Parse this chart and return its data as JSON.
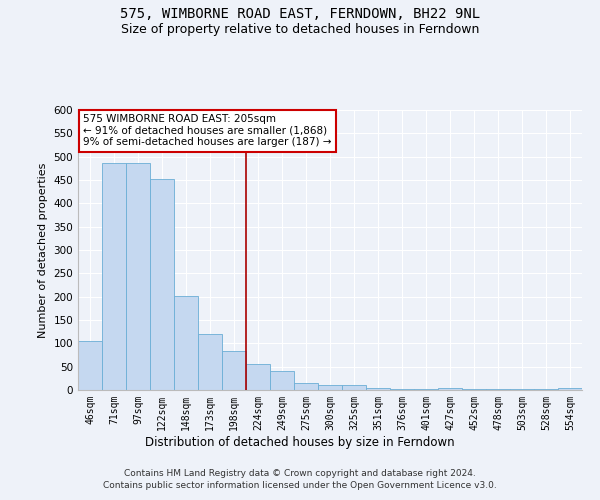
{
  "title1": "575, WIMBORNE ROAD EAST, FERNDOWN, BH22 9NL",
  "title2": "Size of property relative to detached houses in Ferndown",
  "xlabel": "Distribution of detached houses by size in Ferndown",
  "ylabel": "Number of detached properties",
  "categories": [
    "46sqm",
    "71sqm",
    "97sqm",
    "122sqm",
    "148sqm",
    "173sqm",
    "198sqm",
    "224sqm",
    "249sqm",
    "275sqm",
    "300sqm",
    "325sqm",
    "351sqm",
    "376sqm",
    "401sqm",
    "427sqm",
    "452sqm",
    "478sqm",
    "503sqm",
    "528sqm",
    "554sqm"
  ],
  "values": [
    105,
    487,
    487,
    452,
    201,
    120,
    83,
    56,
    40,
    14,
    10,
    10,
    5,
    2,
    2,
    5,
    2,
    2,
    2,
    2,
    5
  ],
  "bar_color": "#c5d8f0",
  "bar_edge_color": "#6baed6",
  "property_line_index": 6,
  "property_line_color": "#aa0000",
  "annotation_text": "575 WIMBORNE ROAD EAST: 205sqm\n← 91% of detached houses are smaller (1,868)\n9% of semi-detached houses are larger (187) →",
  "annotation_box_color": "#cc0000",
  "ylim": [
    0,
    600
  ],
  "yticks": [
    0,
    50,
    100,
    150,
    200,
    250,
    300,
    350,
    400,
    450,
    500,
    550,
    600
  ],
  "footer1": "Contains HM Land Registry data © Crown copyright and database right 2024.",
  "footer2": "Contains public sector information licensed under the Open Government Licence v3.0.",
  "bg_color": "#eef2f9",
  "grid_color": "#ffffff",
  "title1_fontsize": 10,
  "title2_fontsize": 9
}
